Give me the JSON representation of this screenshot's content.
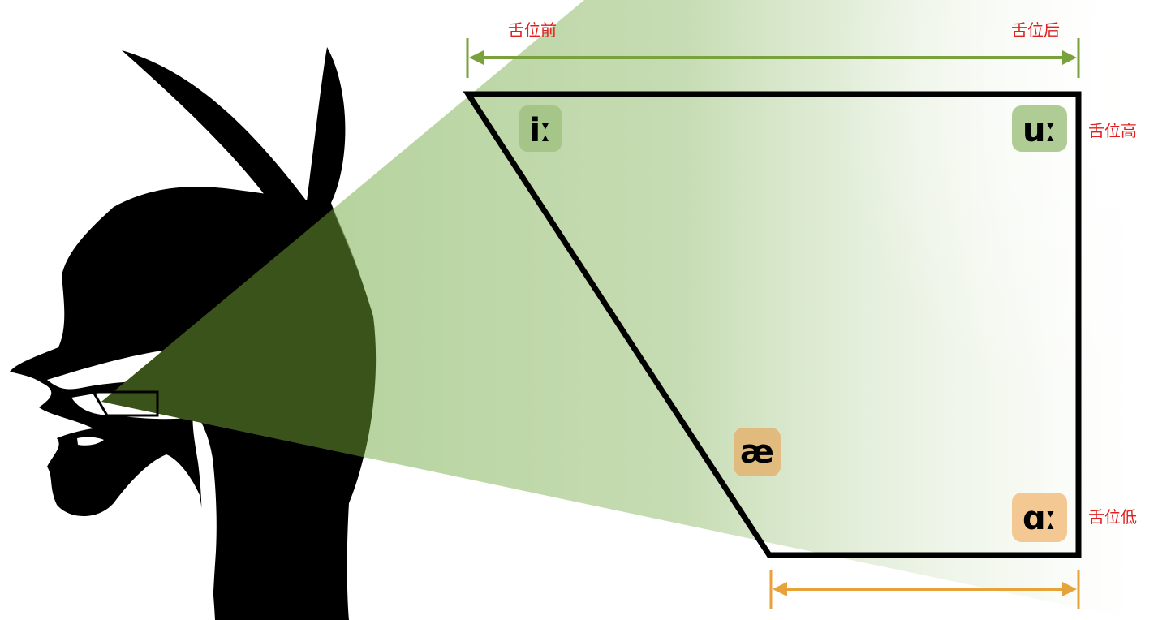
{
  "labels": {
    "front": "舌位前",
    "back": "舌位后",
    "high": "舌位高",
    "low": "舌位低"
  },
  "vowels": {
    "i": "iː",
    "u": "uː",
    "ae": "æ",
    "a": "ɑː"
  },
  "colors": {
    "label_red": "#e02020",
    "front_back_arrow": "#7aa23c",
    "low_arrow": "#e8a23a",
    "beam_green": "#8fbc6a",
    "beam_dark": "#3a531b",
    "chip_green": "#9cbf7c",
    "chip_orange": "#f2c58c",
    "chip_tan": "#e2b87a",
    "silhouette": "#000000"
  },
  "icons": {
    "head": "head-profile-silhouette-icon",
    "arrow": "double-headed-arrow-icon",
    "vowel-trapezoid": "vowel-trapezoid-icon"
  }
}
